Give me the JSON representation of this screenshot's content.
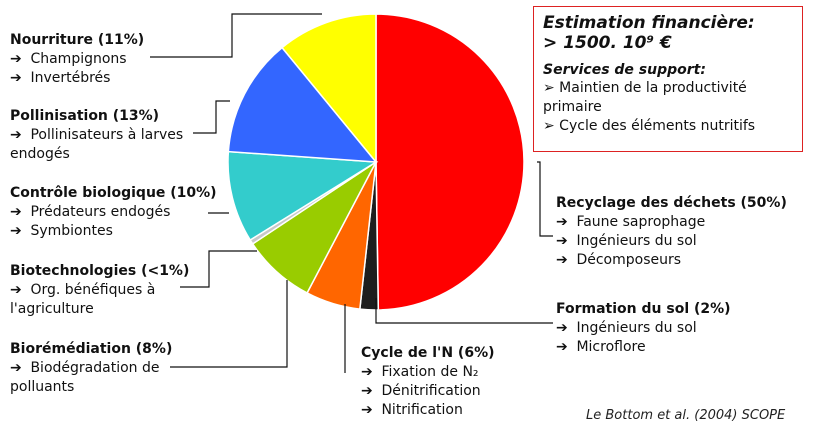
{
  "chart_data": {
    "type": "pie",
    "slices": [
      {
        "title": "Recyclage des déchets (50%)",
        "value": 50,
        "color": "#ff0000",
        "items": [
          "Faune saprophage",
          "Ingénieurs du sol",
          "Décomposeurs"
        ]
      },
      {
        "title": "Formation du sol (2%)",
        "value": 2,
        "color": "#1e1e1e",
        "items": [
          "Ingénieurs du sol",
          "Microflore"
        ]
      },
      {
        "title": "Cycle de  l'N (6%)",
        "value": 6,
        "color": "#ff6600",
        "items": [
          "Fixation de N₂",
          "Dénitrification",
          "Nitrification"
        ]
      },
      {
        "title": "Biorémédiation (8%)",
        "value": 8,
        "color": "#99cc00",
        "items": [
          "Biodégradation de polluants"
        ]
      },
      {
        "title": "Biotechnologies (<1%)",
        "value": 0.5,
        "color": "#c8c8c8",
        "items": [
          "Org. bénéfiques à l'agriculture"
        ]
      },
      {
        "title": "Contrôle biologique (10%)",
        "value": 10,
        "color": "#33cccc",
        "items": [
          "Prédateurs endogés",
          "Symbiontes"
        ]
      },
      {
        "title": "Pollinisation (13%)",
        "value": 13,
        "color": "#3366ff",
        "items": [
          "Pollinisateurs à larves endogés"
        ]
      },
      {
        "title": "Nourriture (11%)",
        "value": 11,
        "color": "#ffff00",
        "items": [
          "Champignons",
          "Invertébrés"
        ]
      }
    ]
  },
  "arrow_glyph": "➔",
  "infobox": {
    "heading_1": "Estimation financière:",
    "heading_2": "> 1500. 10⁹ €",
    "subheading": "Services de support:",
    "bullets": [
      "➢ Maintien de la productivité primaire",
      "➢ Cycle des éléments nutritifs"
    ]
  },
  "source_text": "Le Bottom et al. (2004) SCOPE"
}
